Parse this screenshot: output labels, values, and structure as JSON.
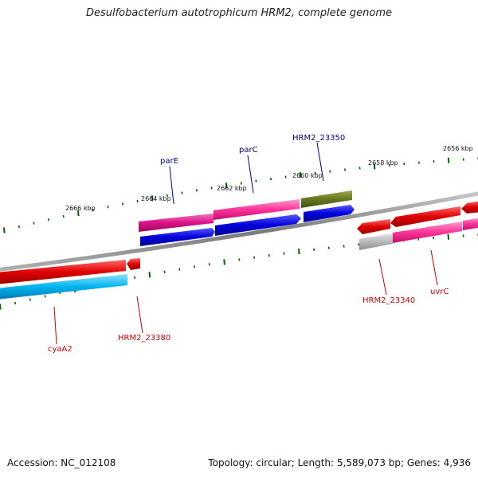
{
  "title": "Desulfobacterium autotrophicum HRM2, complete genome",
  "footer": {
    "accession": "Accession: NC_012108",
    "summary": "Topology: circular; Length: 5,589,073 bp; Genes: 4,936"
  },
  "scale_labels": [
    "2656 kbp",
    "2658 kbp",
    "2660 kbp",
    "2662 kbp",
    "2664 kbp",
    "2666 kbp"
  ],
  "gene_labels": {
    "forward": [
      "parE",
      "parC",
      "HRM2_23350"
    ],
    "reverse": [
      "cyaA2",
      "HRM2_23380",
      "HRM2_23340",
      "uvrC"
    ]
  },
  "colors": {
    "forward_label": "#00008b",
    "reverse_label": "#cc0000",
    "backbone": "#808080",
    "tick": "#006400",
    "gene_red": "#e00000",
    "gene_pink": "#ff3399",
    "gene_magenta": "#dd1188",
    "gene_blue": "#0000dd",
    "gene_cyan": "#00aaee",
    "gene_olive": "#667722",
    "gene_gray": "#b0b0b0"
  }
}
